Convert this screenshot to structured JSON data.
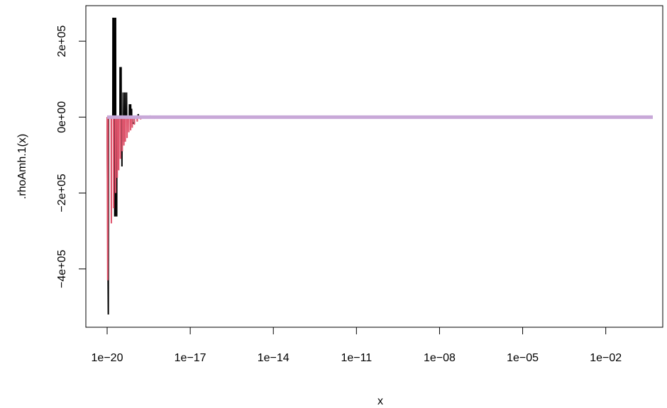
{
  "chart_data": {
    "type": "line",
    "title": "",
    "xlabel": "x",
    "ylabel": ".rhoAmh.1(x)",
    "x_scale": "log10",
    "xlim": [
      1e-20,
      0.5
    ],
    "ylim": [
      -520000.0,
      260000.0
    ],
    "x_ticks": [
      {
        "value": 1e-20,
        "label": "1e−20"
      },
      {
        "value": 1e-17,
        "label": "1e−17"
      },
      {
        "value": 1e-14,
        "label": "1e−14"
      },
      {
        "value": 1e-11,
        "label": "1e−11"
      },
      {
        "value": 1e-08,
        "label": "1e−08"
      },
      {
        "value": 1e-05,
        "label": "1e−05"
      },
      {
        "value": 0.01,
        "label": "1e−02"
      }
    ],
    "y_ticks": [
      {
        "value": -400000,
        "label": "−4e+05"
      },
      {
        "value": -200000,
        "label": "−2e+05"
      },
      {
        "value": 0,
        "label": "0e+00"
      },
      {
        "value": 200000,
        "label": "2e+05"
      }
    ],
    "grid": false,
    "series": [
      {
        "color": "#000000",
        "width": 2,
        "points": [
          [
            1e-20,
            0
          ],
          [
            1.1e-20,
            -520000
          ],
          [
            1.12e-20,
            0
          ],
          [
            1.6e-20,
            0
          ],
          [
            1.62e-20,
            260000
          ],
          [
            1.72e-20,
            260000
          ],
          [
            1.74e-20,
            0
          ],
          [
            1.86e-20,
            0
          ],
          [
            1.88e-20,
            -260000
          ],
          [
            1.92e-20,
            -260000
          ],
          [
            1.94e-20,
            260000
          ],
          [
            2.02e-20,
            260000
          ],
          [
            2.04e-20,
            0
          ],
          [
            2.15e-20,
            0
          ],
          [
            2.17e-20,
            -260000
          ],
          [
            2.22e-20,
            -260000
          ],
          [
            2.24e-20,
            0
          ],
          [
            2.9e-20,
            0
          ],
          [
            2.92e-20,
            130000
          ],
          [
            3.2e-20,
            130000
          ],
          [
            3.22e-20,
            0
          ],
          [
            3.4e-20,
            0
          ],
          [
            3.42e-20,
            -130000
          ],
          [
            3.45e-20,
            0
          ],
          [
            3.75e-20,
            0
          ],
          [
            3.78e-20,
            65000
          ],
          [
            3.85e-20,
            0
          ],
          [
            4e-20,
            0
          ],
          [
            4.02e-20,
            -65000
          ],
          [
            4.08e-20,
            0
          ],
          [
            4.35e-20,
            0
          ],
          [
            4.38e-20,
            65000
          ],
          [
            4.45e-20,
            0
          ],
          [
            5e-20,
            0
          ],
          [
            5.03e-20,
            65000
          ],
          [
            5.1e-20,
            0
          ],
          [
            6.3e-20,
            0
          ],
          [
            6.35e-20,
            32000
          ],
          [
            7.1e-20,
            32000
          ],
          [
            7.15e-20,
            0
          ],
          [
            7.6e-20,
            0
          ],
          [
            7.65e-20,
            22000
          ],
          [
            7.7e-20,
            0
          ],
          [
            8.2e-20,
            0
          ],
          [
            8.25e-20,
            -16000
          ],
          [
            9.6e-20,
            -16000
          ],
          [
            9.65e-20,
            0
          ],
          [
            1.3e-19,
            0
          ],
          [
            1.32e-19,
            8000
          ],
          [
            1.36e-19,
            0
          ],
          [
            1.6e-19,
            0
          ],
          [
            1.62e-19,
            -5000
          ],
          [
            1.66e-19,
            0
          ],
          [
            2e-19,
            0
          ],
          [
            2.02e-19,
            4000
          ],
          [
            2.06e-19,
            0
          ],
          [
            2.4e-19,
            0
          ],
          [
            2.42e-19,
            -3000
          ],
          [
            2.46e-19,
            0
          ],
          [
            3.4e-19,
            0
          ],
          [
            3.5e-19,
            1500
          ],
          [
            3.6e-19,
            0
          ],
          [
            5e-19,
            0
          ],
          [
            5.1e-19,
            -1000
          ],
          [
            5.2e-19,
            0
          ],
          [
            1e-18,
            0
          ],
          [
            0.5,
            0
          ]
        ]
      },
      {
        "color": "#df536b",
        "width": 2,
        "points": [
          [
            1e-20,
            0
          ],
          [
            1.05e-20,
            -430000
          ],
          [
            1.08e-20,
            0
          ],
          [
            1.4e-20,
            0
          ],
          [
            1.42e-20,
            -280000
          ],
          [
            1.44e-20,
            0
          ],
          [
            1.7e-20,
            0
          ],
          [
            1.72e-20,
            -240000
          ],
          [
            1.74e-20,
            0
          ],
          [
            2e-20,
            0
          ],
          [
            2.02e-20,
            -200000
          ],
          [
            2.04e-20,
            0
          ],
          [
            2.3e-20,
            0
          ],
          [
            2.32e-20,
            -160000
          ],
          [
            2.34e-20,
            0
          ],
          [
            2.6e-20,
            0
          ],
          [
            2.62e-20,
            -140000
          ],
          [
            2.64e-20,
            0
          ],
          [
            3e-20,
            0
          ],
          [
            3.02e-20,
            -110000
          ],
          [
            3.05e-20,
            0
          ],
          [
            3.5e-20,
            0
          ],
          [
            3.52e-20,
            -90000
          ],
          [
            3.55e-20,
            0
          ],
          [
            4e-20,
            0
          ],
          [
            4.03e-20,
            -75000
          ],
          [
            4.06e-20,
            0
          ],
          [
            4.5e-20,
            0
          ],
          [
            4.53e-20,
            -65000
          ],
          [
            4.56e-20,
            0
          ],
          [
            5.2e-20,
            0
          ],
          [
            5.25e-20,
            -55000
          ],
          [
            5.3e-20,
            0
          ],
          [
            6e-20,
            0
          ],
          [
            6.05e-20,
            -40000
          ],
          [
            6.1e-20,
            0
          ],
          [
            7e-20,
            0
          ],
          [
            7.05e-20,
            -35000
          ],
          [
            7.1e-20,
            0
          ],
          [
            8e-20,
            0
          ],
          [
            8.06e-20,
            -28000
          ],
          [
            8.12e-20,
            0
          ],
          [
            9.5e-20,
            0
          ],
          [
            9.6e-20,
            -20000
          ],
          [
            9.7e-20,
            0
          ],
          [
            1.2e-19,
            0
          ],
          [
            1.22e-19,
            -12000
          ],
          [
            1.24e-19,
            0
          ],
          [
            1.6e-19,
            0
          ],
          [
            1.62e-19,
            -6000
          ],
          [
            1.64e-19,
            0
          ],
          [
            2.5e-19,
            0
          ],
          [
            2.55e-19,
            -3000
          ],
          [
            2.6e-19,
            0
          ],
          [
            1e-18,
            0
          ],
          [
            0.5,
            0
          ]
        ]
      },
      {
        "color": "#6a82d9",
        "width": 2,
        "points": [
          [
            1e-20,
            0
          ],
          [
            0.5,
            0
          ]
        ]
      },
      {
        "color": "#c8a8d8",
        "width": 5,
        "points": [
          [
            1e-20,
            0
          ],
          [
            0.5,
            0
          ]
        ]
      }
    ]
  }
}
